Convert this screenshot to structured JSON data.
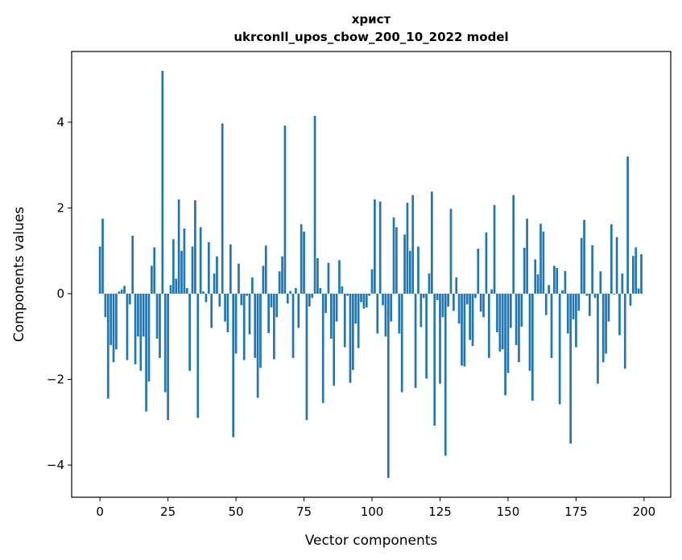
{
  "chart_data": {
    "type": "bar",
    "title": "христ",
    "subtitle": "ukrconll_upos_cbow_200_10_2022 model",
    "xlabel": "Vector components",
    "ylabel": "Components values",
    "xlim": [
      -10.4,
      209.8
    ],
    "ylim": [
      -4.75,
      5.65
    ],
    "xticks": [
      0,
      25,
      50,
      75,
      100,
      125,
      150,
      175,
      200
    ],
    "yticks": [
      -4,
      -2,
      0,
      2,
      4
    ],
    "ytick_labels": [
      "−4",
      "−2",
      "0",
      "2",
      "4"
    ],
    "grid": false,
    "color": "#1f77b4",
    "values": [
      1.1,
      1.75,
      -0.55,
      -2.45,
      -1.2,
      -1.6,
      -1.3,
      0.05,
      0.1,
      0.18,
      -1.55,
      -0.25,
      1.35,
      -1.65,
      -1.0,
      -1.8,
      -1.0,
      -2.75,
      -2.05,
      0.65,
      1.08,
      -1.05,
      -1.5,
      5.2,
      -2.3,
      -2.95,
      0.2,
      1.27,
      0.35,
      2.2,
      1.0,
      1.52,
      0.13,
      -1.8,
      1.1,
      2.18,
      -2.9,
      1.55,
      0.05,
      -0.2,
      1.2,
      -0.8,
      0.47,
      0.87,
      -0.3,
      3.97,
      -0.65,
      -0.9,
      1.15,
      -3.35,
      -1.4,
      0.7,
      -0.27,
      -1.55,
      -0.05,
      -0.95,
      0.38,
      -1.5,
      -2.43,
      -1.73,
      0.65,
      1.12,
      -0.92,
      -0.32,
      -1.53,
      -0.55,
      0.52,
      0.87,
      3.92,
      -0.23,
      0.06,
      -1.5,
      0.13,
      -0.8,
      1.62,
      1.45,
      -2.95,
      -0.3,
      -0.1,
      4.15,
      0.83,
      0.13,
      -2.55,
      -0.45,
      0.72,
      -1.05,
      -2.15,
      -0.65,
      0.78,
      0.17,
      -1.25,
      -0.05,
      -2.08,
      -1.78,
      -0.7,
      -1.27,
      -0.2,
      -0.35,
      -0.32,
      -0.05,
      0.57,
      2.2,
      -0.93,
      2.15,
      -0.27,
      -1.0,
      -4.3,
      -0.65,
      1.78,
      1.55,
      -0.93,
      -2.3,
      1.38,
      2.12,
      1.0,
      2.3,
      -2.2,
      1.1,
      -0.78,
      -0.1,
      -1.98,
      0.47,
      2.38,
      -3.08,
      -0.15,
      -2.1,
      -0.55,
      -3.78,
      -0.3,
      1.98,
      -0.4,
      0.38,
      -0.7,
      -1.68,
      -1.7,
      -0.25,
      -1.08,
      -1.22,
      -0.1,
      1.05,
      -0.42,
      -0.55,
      1.43,
      -1.5,
      0.1,
      2.07,
      -0.9,
      -1.35,
      -1.3,
      -2.37,
      -1.85,
      -0.8,
      2.3,
      -1.2,
      -1.6,
      -0.77,
      1.07,
      1.75,
      -1.8,
      -2.5,
      0.8,
      0.45,
      1.63,
      1.45,
      -0.5,
      0.2,
      -1.5,
      0.65,
      0.6,
      -2.58,
      0.08,
      0.53,
      -0.93,
      -3.5,
      -0.6,
      -1.25,
      -0.4,
      1.3,
      1.72,
      -0.05,
      -0.52,
      1.13,
      -0.1,
      -2.1,
      0.52,
      -1.6,
      -1.4,
      -0.65,
      1.62,
      -0.02,
      1.32,
      -0.97,
      0.47,
      -1.75,
      3.2,
      -0.28,
      0.88,
      1.08,
      0.12,
      0.92
    ]
  }
}
